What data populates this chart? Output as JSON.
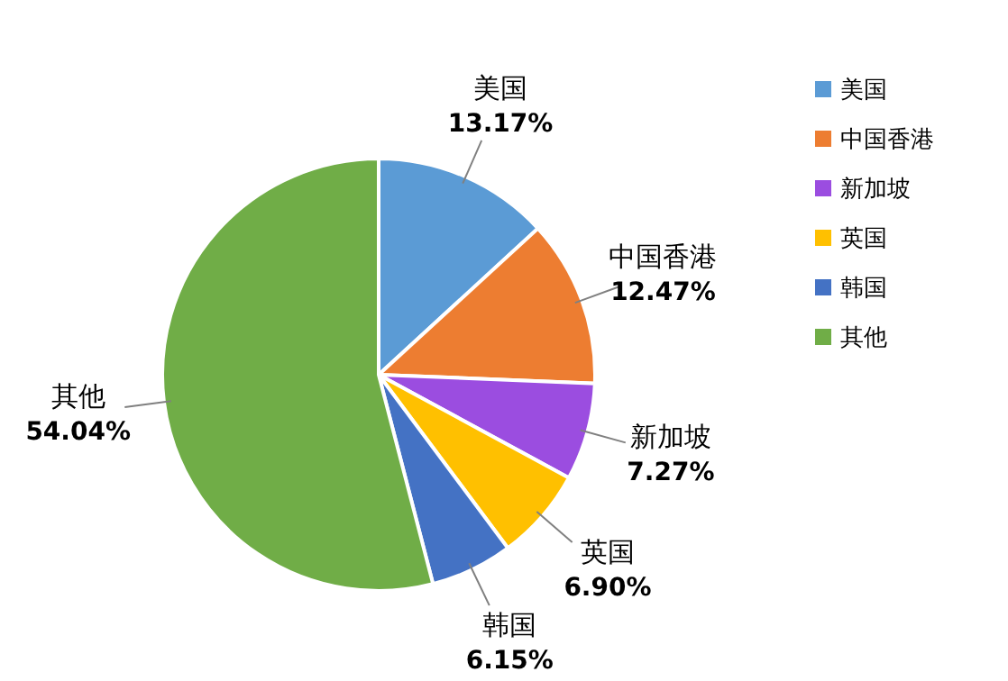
{
  "chart_data": {
    "type": "pie",
    "categories": [
      "美国",
      "中国香港",
      "新加坡",
      "英国",
      "韩国",
      "其他"
    ],
    "values": [
      13.17,
      12.47,
      7.27,
      6.9,
      6.15,
      54.04
    ],
    "colors": [
      "#5b9bd5",
      "#ed7d31",
      "#9b4de0",
      "#ffc000",
      "#4472c4",
      "#70ad47"
    ],
    "value_labels": [
      "13.17%",
      "12.47%",
      "7.27%",
      "6.90%",
      "6.15%",
      "54.04%"
    ],
    "legend": "right"
  }
}
